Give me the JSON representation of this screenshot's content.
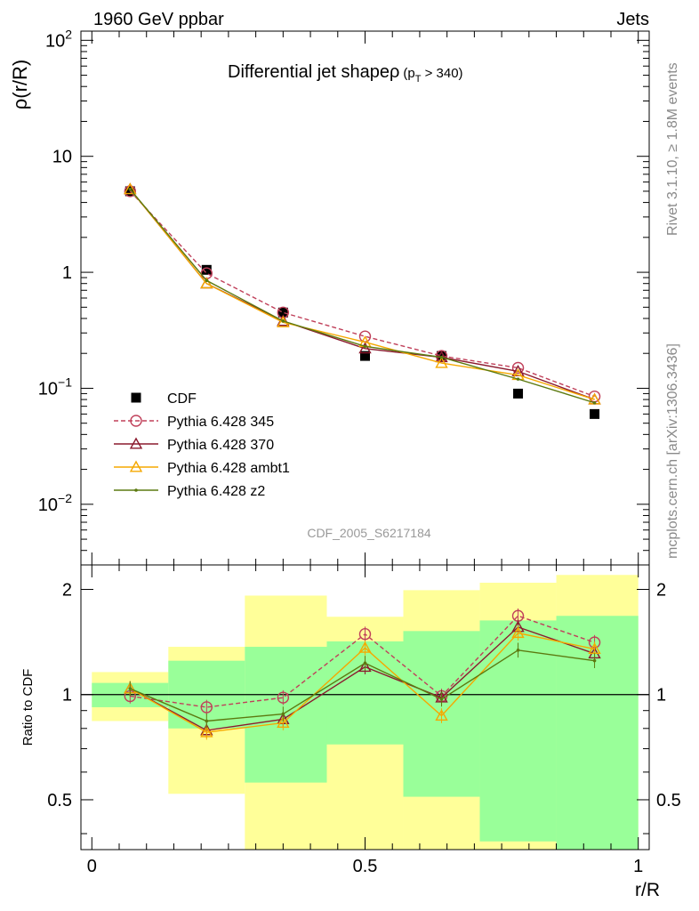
{
  "header": {
    "left": "1960 GeV ppbar",
    "right": "Jets"
  },
  "side_labels": {
    "rivet": "Rivet 3.1.10, ≥ 1.8M events",
    "mcplots": "mcplots.cern.ch [arXiv:1306.3436]"
  },
  "chart_data": [
    {
      "type": "line",
      "title_main": "Differential jet shapeρ",
      "title_sub": "(p",
      "title_sub_index": "T",
      "title_sub_tail": " > 340)",
      "ylabel": "ρ(r/R)",
      "xlabel": "",
      "yscale": "log",
      "ylim": [
        0.003,
        120
      ],
      "xlim": [
        -0.02,
        1.02
      ],
      "y_ticks": [
        {
          "value": 100,
          "base": "10",
          "exp": "2"
        },
        {
          "value": 10,
          "base": "10",
          "exp": ""
        },
        {
          "value": 1,
          "base": "1",
          "exp": ""
        },
        {
          "value": 0.1,
          "base": "10",
          "exp": "−1"
        },
        {
          "value": 0.01,
          "base": "10",
          "exp": "−2"
        }
      ],
      "watermark": "CDF_2005_S6217184",
      "legend_position": "lower-left",
      "x": [
        0.07,
        0.21,
        0.35,
        0.5,
        0.64,
        0.78,
        0.92
      ],
      "series": [
        {
          "name": "CDF",
          "style": "data",
          "color": "#000000",
          "marker": "square",
          "values": [
            5.0,
            1.05,
            0.45,
            0.19,
            0.19,
            0.09,
            0.06
          ]
        },
        {
          "name": "Pythia 6.428 345",
          "style": "dashed",
          "color": "#c0405a",
          "marker": "open-circle",
          "values": [
            5.0,
            0.98,
            0.45,
            0.28,
            0.19,
            0.15,
            0.085
          ]
        },
        {
          "name": "Pythia 6.428 370",
          "style": "solid",
          "color": "#8b1a2e",
          "marker": "open-triangle",
          "values": [
            5.2,
            0.8,
            0.38,
            0.22,
            0.185,
            0.14,
            0.08
          ]
        },
        {
          "name": "Pythia 6.428 ambt1",
          "style": "solid",
          "color": "#f5a800",
          "marker": "open-triangle",
          "values": [
            5.2,
            0.8,
            0.37,
            0.25,
            0.165,
            0.13,
            0.08
          ]
        },
        {
          "name": "Pythia 6.428 z2",
          "style": "solid",
          "color": "#5c7a10",
          "marker": "dot",
          "values": [
            5.2,
            0.85,
            0.38,
            0.23,
            0.185,
            0.12,
            0.075
          ]
        }
      ]
    },
    {
      "type": "line",
      "ylabel": "Ratio to CDF",
      "xlabel": "r/R",
      "yscale": "log",
      "ylim": [
        0.36,
        2.35
      ],
      "xlim": [
        -0.02,
        1.02
      ],
      "y_ticks": [
        0.5,
        1,
        2
      ],
      "x_ticks": [
        {
          "value": 0,
          "label": "0"
        },
        {
          "value": 0.5,
          "label": "0.5"
        },
        {
          "value": 1,
          "label": "1"
        }
      ],
      "uncertainty_bands": {
        "edges": [
          0,
          0.14,
          0.28,
          0.43,
          0.57,
          0.71,
          0.85,
          1.0
        ],
        "inner": {
          "color": "#99ff99",
          "low": [
            0.92,
            0.8,
            0.56,
            0.72,
            0.51,
            0.38,
            0.36
          ],
          "high": [
            1.08,
            1.25,
            1.37,
            1.42,
            1.52,
            1.63,
            1.68
          ]
        },
        "outer": {
          "color": "#ffff99",
          "low": [
            0.84,
            0.52,
            0.36,
            0.36,
            0.36,
            0.36,
            0.36
          ],
          "high": [
            1.16,
            1.37,
            1.92,
            1.67,
            1.99,
            2.09,
            2.2
          ]
        }
      },
      "reference_line": 1,
      "x": [
        0.07,
        0.21,
        0.35,
        0.5,
        0.64,
        0.78,
        0.92
      ],
      "series": [
        {
          "name": "Pythia 6.428 345",
          "style": "dashed",
          "color": "#c0405a",
          "marker": "open-circle",
          "values": [
            0.99,
            0.92,
            0.98,
            1.49,
            0.99,
            1.68,
            1.41
          ]
        },
        {
          "name": "Pythia 6.428 370",
          "style": "solid",
          "color": "#8b1a2e",
          "marker": "open-triangle",
          "values": [
            1.04,
            0.79,
            0.85,
            1.2,
            0.98,
            1.56,
            1.31
          ]
        },
        {
          "name": "Pythia 6.428 ambt1",
          "style": "solid",
          "color": "#f5a800",
          "marker": "open-triangle",
          "values": [
            1.04,
            0.78,
            0.83,
            1.36,
            0.87,
            1.5,
            1.35
          ]
        },
        {
          "name": "Pythia 6.428 z2",
          "style": "solid",
          "color": "#5c7a10",
          "marker": "dot",
          "values": [
            1.04,
            0.84,
            0.88,
            1.23,
            0.97,
            1.34,
            1.25
          ]
        }
      ]
    }
  ]
}
